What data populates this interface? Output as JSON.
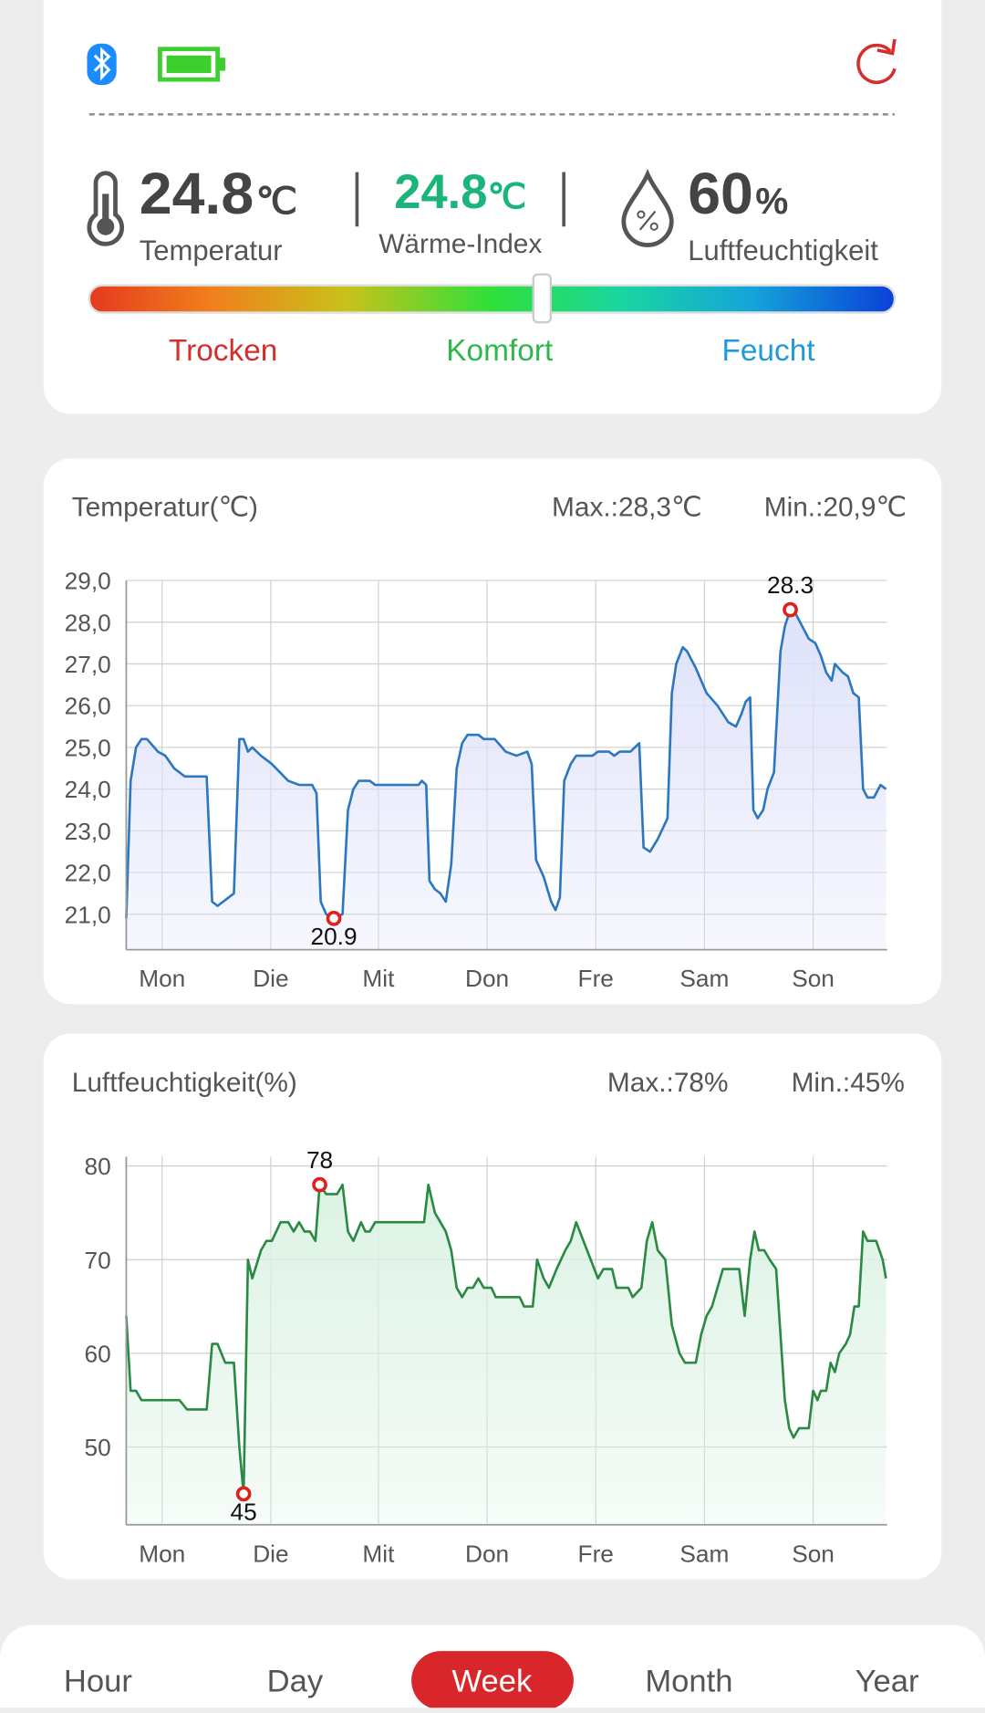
{
  "status": {
    "temperature": {
      "value": 24.8,
      "unit": "℃",
      "label": "Temperatur"
    },
    "heat_index": {
      "value": 24.8,
      "unit": "℃",
      "label": "Wärme-Index"
    },
    "humidity": {
      "value": 60,
      "unit": "%",
      "label": "Luftfeuchtigkeit"
    },
    "comfort_labels": [
      "Trocken",
      "Komfort",
      "Feucht"
    ]
  },
  "charts": [
    {
      "type": "line",
      "title": "Temperatur(℃)",
      "max_label": "Max.:28,3℃",
      "min_label": "Min.:20,9℃",
      "color": "#2b77c0",
      "fill": "#dfe2fa",
      "xlim": [
        0,
        7
      ],
      "xticks": [
        {
          "value": 0.33,
          "label": "Mon"
        },
        {
          "value": 1.33,
          "label": "Die"
        },
        {
          "value": 2.32,
          "label": "Mit"
        },
        {
          "value": 3.32,
          "label": "Don"
        },
        {
          "value": 4.32,
          "label": "Fre"
        },
        {
          "value": 5.32,
          "label": "Sam"
        },
        {
          "value": 6.32,
          "label": "Son"
        }
      ],
      "ylim": [
        20.15,
        29
      ],
      "yticks": [
        {
          "value": 29,
          "label": "29,0"
        },
        {
          "value": 28,
          "label": "28,0"
        },
        {
          "value": 27,
          "label": "27,0"
        },
        {
          "value": 26,
          "label": "26,0"
        },
        {
          "value": 25,
          "label": "25,0"
        },
        {
          "value": 24,
          "label": "24,0"
        },
        {
          "value": 23,
          "label": "23,0"
        },
        {
          "value": 22,
          "label": "22,0"
        },
        {
          "value": 21,
          "label": "21,0"
        }
      ],
      "x": [
        0,
        0.04,
        0.09,
        0.14,
        0.19,
        0.29,
        0.36,
        0.44,
        0.54,
        0.74,
        0.79,
        0.84,
        0.99,
        1.04,
        1.08,
        1.12,
        1.16,
        1.24,
        1.34,
        1.49,
        1.59,
        1.71,
        1.75,
        1.79,
        1.84,
        1.91,
        1.99,
        2.04,
        2.09,
        2.14,
        2.24,
        2.29,
        2.69,
        2.72,
        2.76,
        2.79,
        2.84,
        2.89,
        2.94,
        2.99,
        3.04,
        3.09,
        3.14,
        3.24,
        3.29,
        3.39,
        3.49,
        3.59,
        3.69,
        3.73,
        3.77,
        3.84,
        3.91,
        3.95,
        3.99,
        4.03,
        4.09,
        4.14,
        4.29,
        4.34,
        4.44,
        4.49,
        4.54,
        4.64,
        4.72,
        4.76,
        4.82,
        4.89,
        4.98,
        5.02,
        5.06,
        5.12,
        5.16,
        5.24,
        5.34,
        5.44,
        5.54,
        5.61,
        5.66,
        5.7,
        5.74,
        5.77,
        5.81,
        5.86,
        5.9,
        5.96,
        6.02,
        6.06,
        6.11,
        6.16,
        6.22,
        6.28,
        6.34,
        6.39,
        6.44,
        6.49,
        6.52,
        6.59,
        6.64,
        6.69,
        6.74,
        6.78,
        6.82,
        6.88,
        6.94,
        6.99
      ],
      "values": [
        20.9,
        24.2,
        25.0,
        25.2,
        25.2,
        24.9,
        24.8,
        24.5,
        24.3,
        24.3,
        21.3,
        21.2,
        21.5,
        25.2,
        25.2,
        24.9,
        25.0,
        24.8,
        24.6,
        24.2,
        24.1,
        24.1,
        23.9,
        21.3,
        21.0,
        20.9,
        21.0,
        23.5,
        24.0,
        24.2,
        24.2,
        24.1,
        24.1,
        24.2,
        24.1,
        21.8,
        21.6,
        21.5,
        21.3,
        22.2,
        24.5,
        25.1,
        25.3,
        25.3,
        25.2,
        25.2,
        24.9,
        24.8,
        24.9,
        24.6,
        22.3,
        21.9,
        21.3,
        21.1,
        21.4,
        24.2,
        24.6,
        24.8,
        24.8,
        24.9,
        24.9,
        24.8,
        24.9,
        24.9,
        25.1,
        22.6,
        22.5,
        22.8,
        23.3,
        26.3,
        27.0,
        27.4,
        27.3,
        26.9,
        26.3,
        26.0,
        25.6,
        25.5,
        25.8,
        26.1,
        26.2,
        23.5,
        23.3,
        23.5,
        24.0,
        24.4,
        27.3,
        27.9,
        28.3,
        28.2,
        27.9,
        27.6,
        27.5,
        27.2,
        26.8,
        26.6,
        27.0,
        26.8,
        26.7,
        26.3,
        26.2,
        24.0,
        23.8,
        23.8,
        24.1,
        24.0
      ],
      "markers": [
        {
          "x": 6.11,
          "y": 28.3
        },
        {
          "x": 1.91,
          "y": 20.9
        }
      ]
    },
    {
      "type": "line",
      "title": "Luftfeuchtigkeit(%)",
      "max_label": "Max.:78%",
      "min_label": "Min.:45%",
      "color": "#2a8a44",
      "fill": "#dcf2e4",
      "xlim": [
        0,
        7
      ],
      "xticks": [
        {
          "value": 0.33,
          "label": "Mon"
        },
        {
          "value": 1.33,
          "label": "Die"
        },
        {
          "value": 2.32,
          "label": "Mit"
        },
        {
          "value": 3.32,
          "label": "Don"
        },
        {
          "value": 4.32,
          "label": "Fre"
        },
        {
          "value": 5.32,
          "label": "Sam"
        },
        {
          "value": 6.32,
          "label": "Son"
        }
      ],
      "ylim": [
        41.7,
        81
      ],
      "yticks": [
        80,
        70,
        60,
        50
      ],
      "x": [
        0,
        0.04,
        0.09,
        0.14,
        0.49,
        0.56,
        0.74,
        0.79,
        0.84,
        0.91,
        0.99,
        1.04,
        1.08,
        1.12,
        1.16,
        1.24,
        1.29,
        1.34,
        1.42,
        1.49,
        1.54,
        1.59,
        1.64,
        1.69,
        1.74,
        1.78,
        1.84,
        1.94,
        1.99,
        2.04,
        2.09,
        2.16,
        2.2,
        2.24,
        2.29,
        2.74,
        2.78,
        2.84,
        2.94,
        2.99,
        3.04,
        3.09,
        3.14,
        3.19,
        3.24,
        3.29,
        3.36,
        3.4,
        3.62,
        3.66,
        3.74,
        3.78,
        3.84,
        3.89,
        3.96,
        4.04,
        4.09,
        4.14,
        4.24,
        4.34,
        4.39,
        4.47,
        4.51,
        4.62,
        4.66,
        4.74,
        4.79,
        4.84,
        4.89,
        4.96,
        5.02,
        5.09,
        5.14,
        5.24,
        5.29,
        5.34,
        5.39,
        5.44,
        5.49,
        5.64,
        5.69,
        5.74,
        5.78,
        5.82,
        5.87,
        5.92,
        5.98,
        6.02,
        6.06,
        6.1,
        6.14,
        6.19,
        6.24,
        6.28,
        6.32,
        6.36,
        6.39,
        6.44,
        6.48,
        6.52,
        6.56,
        6.62,
        6.66,
        6.7,
        6.74,
        6.78,
        6.82,
        6.9,
        6.96,
        6.99
      ],
      "values": [
        64,
        56,
        56,
        55,
        55,
        54,
        54,
        61,
        61,
        59,
        59,
        50,
        45,
        70,
        68,
        71,
        72,
        72,
        74,
        74,
        73,
        74,
        73,
        73,
        72,
        78,
        77,
        77,
        78,
        73,
        72,
        74,
        73,
        73,
        74,
        74,
        78,
        75,
        73,
        71,
        67,
        66,
        67,
        67,
        68,
        67,
        67,
        66,
        66,
        65,
        65,
        70,
        68,
        67,
        69,
        71,
        72,
        74,
        71,
        68,
        69,
        69,
        67,
        67,
        66,
        67,
        72,
        74,
        71,
        70,
        63,
        60,
        59,
        59,
        62,
        64,
        65,
        67,
        69,
        69,
        64,
        70,
        73,
        71,
        71,
        70,
        69,
        62,
        55,
        52,
        51,
        52,
        52,
        52,
        56,
        55,
        56,
        56,
        59,
        58,
        60,
        61,
        62,
        65,
        65,
        73,
        72,
        72,
        70,
        68
      ],
      "markers": [
        {
          "x": 1.78,
          "y": 78
        },
        {
          "x": 1.08,
          "y": 45
        }
      ]
    }
  ],
  "tabs": [
    "Hour",
    "Day",
    "Week",
    "Month",
    "Year"
  ],
  "active_tab": 2
}
